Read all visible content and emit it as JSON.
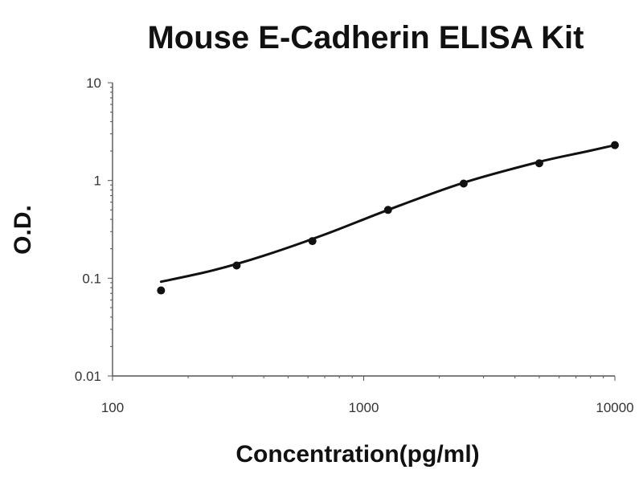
{
  "chart_data": {
    "type": "scatter",
    "title": "Mouse E-Cadherin ELISA Kit",
    "xlabel": "Concentration(pg/ml)",
    "ylabel": "O.D.",
    "xscale": "log",
    "yscale": "log",
    "xlim": [
      100,
      10000
    ],
    "ylim": [
      0.01,
      10
    ],
    "x_tick_labels": [
      "100",
      "1000",
      "10000"
    ],
    "y_tick_labels": [
      "0.01",
      "0.1",
      "1",
      "10"
    ],
    "grid": false,
    "legend": "none",
    "series": [
      {
        "kind": "points",
        "x": [
          156,
          312,
          625,
          1250,
          2500,
          5000,
          10000
        ],
        "y": [
          0.075,
          0.135,
          0.24,
          0.5,
          0.93,
          1.5,
          2.3
        ]
      },
      {
        "kind": "fit-curve",
        "x": [
          156,
          250,
          400,
          700,
          1250,
          2500,
          5000,
          7500,
          10000
        ],
        "y": [
          0.092,
          0.12,
          0.17,
          0.28,
          0.5,
          0.95,
          1.55,
          1.95,
          2.3
        ]
      }
    ],
    "colors": {
      "points": "#111111",
      "curve": "#111111"
    }
  }
}
